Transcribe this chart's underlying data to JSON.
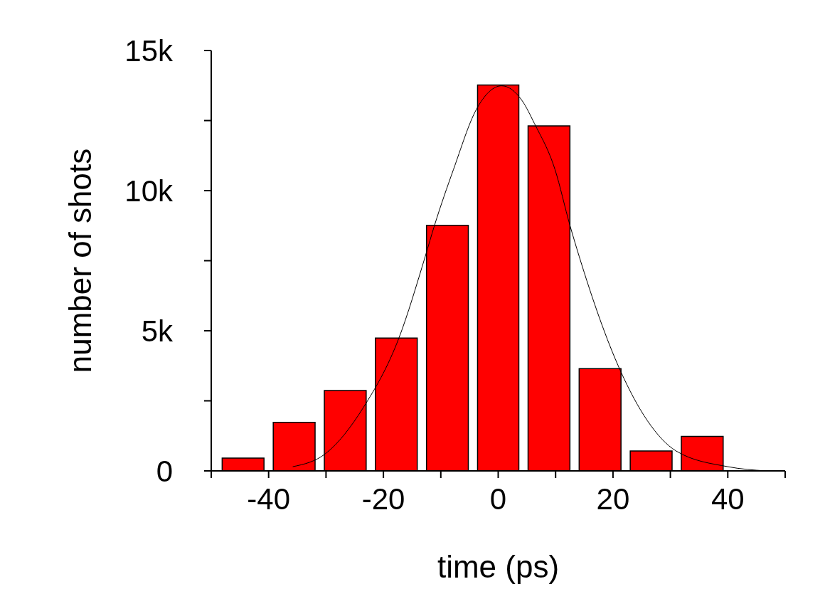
{
  "chart_data": {
    "type": "histogram",
    "xlabel": "time (ps)",
    "ylabel": "number of shots",
    "bins": [
      -48.9,
      -40,
      -31.1,
      -22.2,
      -13.3,
      -4.4,
      4.4,
      13.3,
      22.2,
      31.1,
      40
    ],
    "series": [
      {
        "values": [
          460,
          1730,
          2870,
          4740,
          8760,
          13770,
          12310,
          3650,
          710,
          1230
        ],
        "color": "#ff0000"
      },
      {
        "type": "line",
        "x": [
          -35.8,
          -30,
          -23.5,
          -17.3,
          -12.7,
          -11.1,
          -7.8,
          -3.8,
          0.6,
          4.2,
          6.3,
          9.9,
          12.5,
          14.1,
          21.3,
          26,
          31,
          40,
          46.7
        ],
        "values": [
          150,
          630,
          2260,
          4740,
          7660,
          8760,
          10750,
          12900,
          13740,
          13200,
          12400,
          10750,
          8760,
          7660,
          3570,
          1790,
          710,
          150,
          0
        ],
        "color": "#000000"
      }
    ],
    "xlim": [
      -50,
      50
    ],
    "xticks": [
      {
        "value": -50,
        "label": null
      },
      -40,
      {
        "value": -30,
        "label": null
      },
      -20,
      {
        "value": -10,
        "label": null
      },
      0,
      {
        "value": 10,
        "label": null
      },
      20,
      {
        "value": 30,
        "label": null
      },
      40,
      {
        "value": 50,
        "label": null
      }
    ],
    "ylim": [
      0,
      15000
    ],
    "yticks": [
      0,
      {
        "value": 2500,
        "label": null
      },
      {
        "value": 5000,
        "label": "5k"
      },
      {
        "value": 7500,
        "label": null
      },
      {
        "value": 10000,
        "label": "10k"
      },
      {
        "value": 12500,
        "label": null
      },
      {
        "value": 15000,
        "label": "15k"
      }
    ],
    "grid": false
  }
}
